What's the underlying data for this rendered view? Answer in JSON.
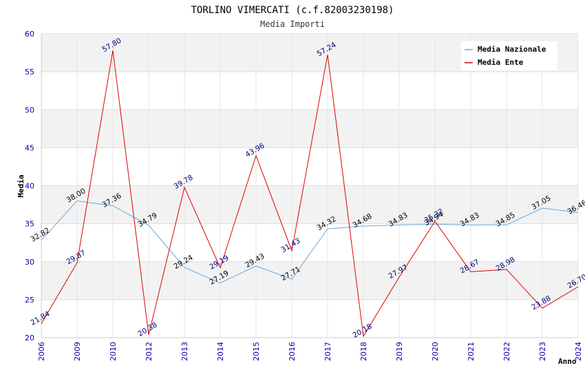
{
  "chart_data": {
    "type": "line",
    "title": "TORLINO VIMERCATI (c.f.82003230198)",
    "subtitle": "Media Importi",
    "xlabel": "Anno",
    "ylabel": "Media",
    "ylim": [
      20,
      60
    ],
    "yticks": [
      20,
      25,
      30,
      35,
      40,
      45,
      50,
      55,
      60
    ],
    "categories": [
      "2006",
      "2009",
      "2010",
      "2012",
      "2013",
      "2014",
      "2015",
      "2016",
      "2017",
      "2018",
      "2019",
      "2020",
      "2021",
      "2022",
      "2023",
      "2024"
    ],
    "series": [
      {
        "name": "Media Nazionale",
        "color": "#66aadd",
        "label_color": "#000000",
        "values": [
          32.82,
          38.0,
          37.36,
          34.79,
          29.24,
          27.19,
          29.43,
          27.71,
          34.32,
          34.68,
          34.83,
          34.94,
          34.83,
          34.85,
          37.05,
          36.46
        ],
        "labels": [
          "32.82",
          "38.00",
          "37.36",
          "34.79",
          "29.24",
          "27.19",
          "29.43",
          "27.71",
          "34.32",
          "34.68",
          "34.83",
          "34.94",
          "34.83",
          "34.85",
          "37.05",
          "36.46"
        ]
      },
      {
        "name": "Media Ente",
        "color": "#dd0000",
        "label_color": "#000077",
        "values": [
          21.84,
          29.87,
          57.8,
          20.38,
          39.78,
          29.19,
          43.96,
          31.43,
          57.24,
          20.18,
          27.97,
          35.32,
          28.67,
          28.98,
          23.88,
          26.7
        ],
        "labels": [
          "21.84",
          "29.87",
          "57.80",
          "20.38",
          "39.78",
          "29.19",
          "43.96",
          "31.43",
          "57.24",
          "20.18",
          "27.97",
          "35.32",
          "28.67",
          "28.98",
          "23.88",
          "26.70"
        ]
      }
    ],
    "grid": true,
    "legend": "top-right"
  }
}
